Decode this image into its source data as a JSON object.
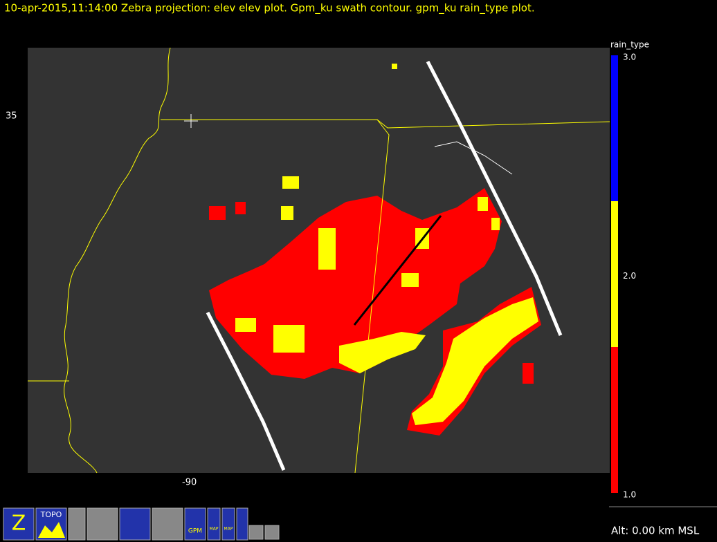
{
  "header": {
    "title": "10-apr-2015,11:14:00  Zebra projection: elev elev  plot.  Gpm_ku swath contour.  gpm_ku rain_type  plot."
  },
  "map": {
    "lat_label": "35",
    "lon_label": "-90"
  },
  "colorbar": {
    "title": "rain_type",
    "ticks": [
      "3.0",
      "2.0",
      "1.0"
    ],
    "colors": [
      "#0000ff",
      "#ffff00",
      "#ff0000"
    ]
  },
  "icons": [
    "Z",
    "TOPO",
    "GPM",
    "MAP",
    "MAP"
  ],
  "status": {
    "altitude": "Alt: 0.00 km MSL"
  }
}
